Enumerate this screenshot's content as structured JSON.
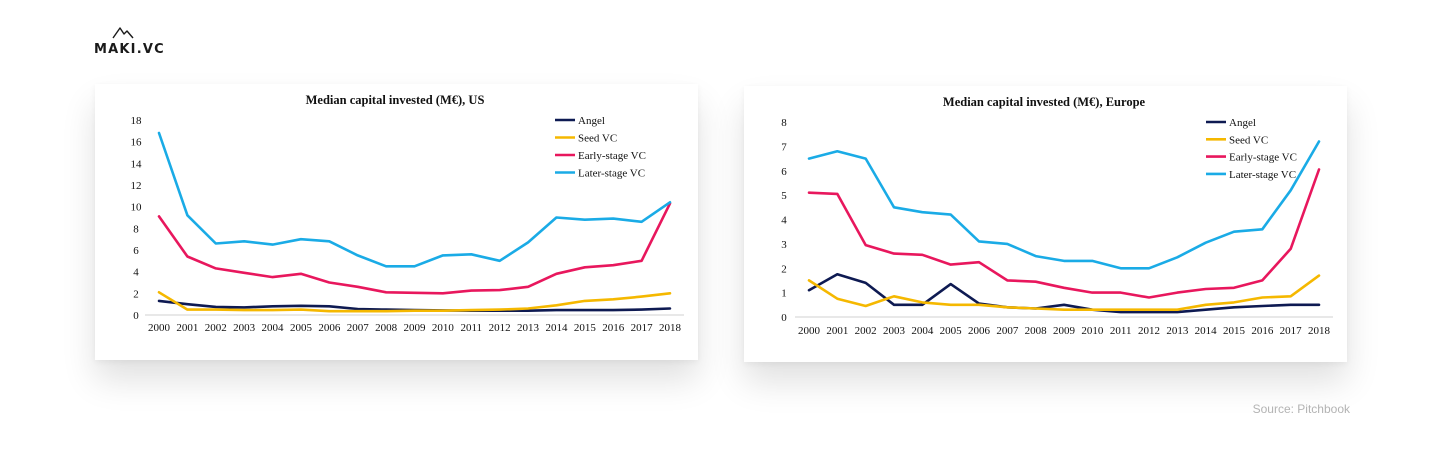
{
  "brand": {
    "name": "MAKI.VC",
    "logo_icon": "maki-peak-icon"
  },
  "source": "Source: Pitchbook",
  "colors": {
    "Angel": "#0e1a52",
    "Seed VC": "#f5b800",
    "Early-stage VC": "#e8175d",
    "Later-stage VC": "#1aabe6"
  },
  "chart_data": [
    {
      "type": "line",
      "title": "Median capital invested (M€), US",
      "xlabel": "",
      "ylabel": "",
      "x": [
        "2000",
        "2001",
        "2002",
        "2003",
        "2004",
        "2005",
        "2006",
        "2007",
        "2008",
        "2009",
        "2010",
        "2011",
        "2012",
        "2013",
        "2014",
        "2015",
        "2016",
        "2017",
        "2018"
      ],
      "yticks": [
        0,
        2,
        4,
        6,
        8,
        10,
        12,
        14,
        16,
        18
      ],
      "ylim": [
        0,
        18
      ],
      "grid": false,
      "legend": "top-right",
      "series": [
        {
          "name": "Angel",
          "values": [
            1.3,
            1.0,
            0.75,
            0.7,
            0.8,
            0.85,
            0.8,
            0.55,
            0.5,
            0.45,
            0.42,
            0.4,
            0.4,
            0.4,
            0.45,
            0.45,
            0.45,
            0.5,
            0.6
          ]
        },
        {
          "name": "Seed VC",
          "values": [
            2.1,
            0.5,
            0.5,
            0.45,
            0.45,
            0.5,
            0.35,
            0.35,
            0.35,
            0.4,
            0.4,
            0.45,
            0.5,
            0.6,
            0.9,
            1.3,
            1.45,
            1.7,
            2.0
          ]
        },
        {
          "name": "Early-stage VC",
          "values": [
            9.1,
            5.4,
            4.3,
            3.9,
            3.5,
            3.8,
            3.0,
            2.6,
            2.1,
            2.05,
            2.0,
            2.25,
            2.3,
            2.6,
            3.8,
            4.4,
            4.6,
            5.0,
            10.3
          ]
        },
        {
          "name": "Later-stage VC",
          "values": [
            16.8,
            9.2,
            6.6,
            6.8,
            6.5,
            7.0,
            6.8,
            5.5,
            4.5,
            4.5,
            5.5,
            5.6,
            5.0,
            6.7,
            9.0,
            8.8,
            8.9,
            8.6,
            10.4
          ]
        }
      ]
    },
    {
      "type": "line",
      "title": "Median capital invested (M€), Europe",
      "xlabel": "",
      "ylabel": "",
      "x": [
        "2000",
        "2001",
        "2002",
        "2003",
        "2004",
        "2005",
        "2006",
        "2007",
        "2008",
        "2009",
        "2010",
        "2011",
        "2012",
        "2013",
        "2014",
        "2015",
        "2016",
        "2017",
        "2018"
      ],
      "yticks": [
        0,
        1,
        2,
        3,
        4,
        5,
        6,
        7,
        8
      ],
      "ylim": [
        0,
        8
      ],
      "grid": false,
      "legend": "top-right",
      "series": [
        {
          "name": "Angel",
          "values": [
            1.1,
            1.75,
            1.4,
            0.5,
            0.5,
            1.35,
            0.55,
            0.4,
            0.35,
            0.5,
            0.3,
            0.2,
            0.2,
            0.2,
            0.3,
            0.4,
            0.45,
            0.5,
            0.5
          ]
        },
        {
          "name": "Seed VC",
          "values": [
            1.5,
            0.75,
            0.45,
            0.85,
            0.6,
            0.5,
            0.5,
            0.4,
            0.35,
            0.3,
            0.3,
            0.3,
            0.3,
            0.3,
            0.5,
            0.6,
            0.8,
            0.85,
            1.7
          ]
        },
        {
          "name": "Early-stage VC",
          "values": [
            5.1,
            5.05,
            2.95,
            2.6,
            2.55,
            2.15,
            2.25,
            1.5,
            1.45,
            1.2,
            1.0,
            1.0,
            0.8,
            1.0,
            1.15,
            1.2,
            1.5,
            2.8,
            6.05
          ]
        },
        {
          "name": "Later-stage VC",
          "values": [
            6.5,
            6.8,
            6.5,
            4.5,
            4.3,
            4.2,
            3.1,
            3.0,
            2.5,
            2.3,
            2.3,
            2.0,
            2.0,
            2.45,
            3.05,
            3.5,
            3.6,
            5.2,
            7.2
          ]
        }
      ]
    }
  ]
}
